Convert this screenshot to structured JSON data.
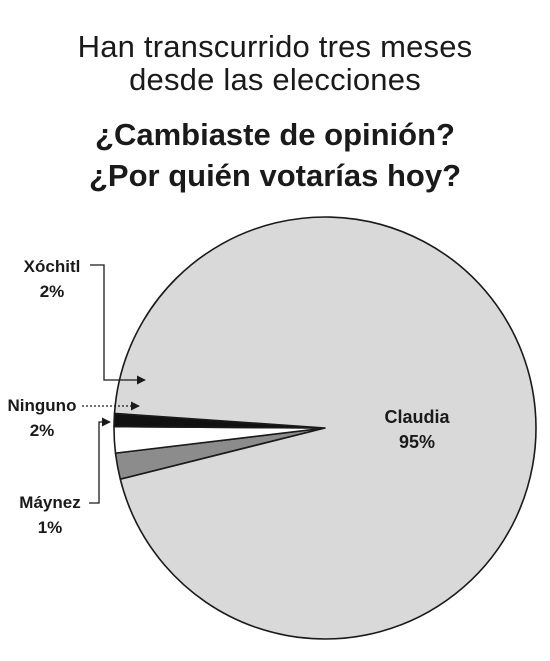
{
  "header": {
    "subtitle_line1": "Han transcurrido tres meses",
    "subtitle_line2": "desde las elecciones",
    "title_line1": "¿Cambiaste de opinión?",
    "title_line2": "¿Por quién votarías hoy?"
  },
  "chart_data": {
    "type": "pie",
    "title": "¿Cambiaste de opinión? ¿Por quién votarías hoy?",
    "subtitle": "Han transcurrido tres meses desde las elecciones",
    "slices": [
      {
        "label": "Claudia",
        "value": 95,
        "value_label": "95%",
        "color": "#d9d9d9"
      },
      {
        "label": "Xóchitl",
        "value": 2,
        "value_label": "2%",
        "color": "#8c8c8c"
      },
      {
        "label": "Ninguno",
        "value": 2,
        "value_label": "2%",
        "color": "#ffffff"
      },
      {
        "label": "Máynez",
        "value": 1,
        "value_label": "1%",
        "color": "#111111"
      }
    ],
    "stroke_color": "#1a1a1a"
  }
}
